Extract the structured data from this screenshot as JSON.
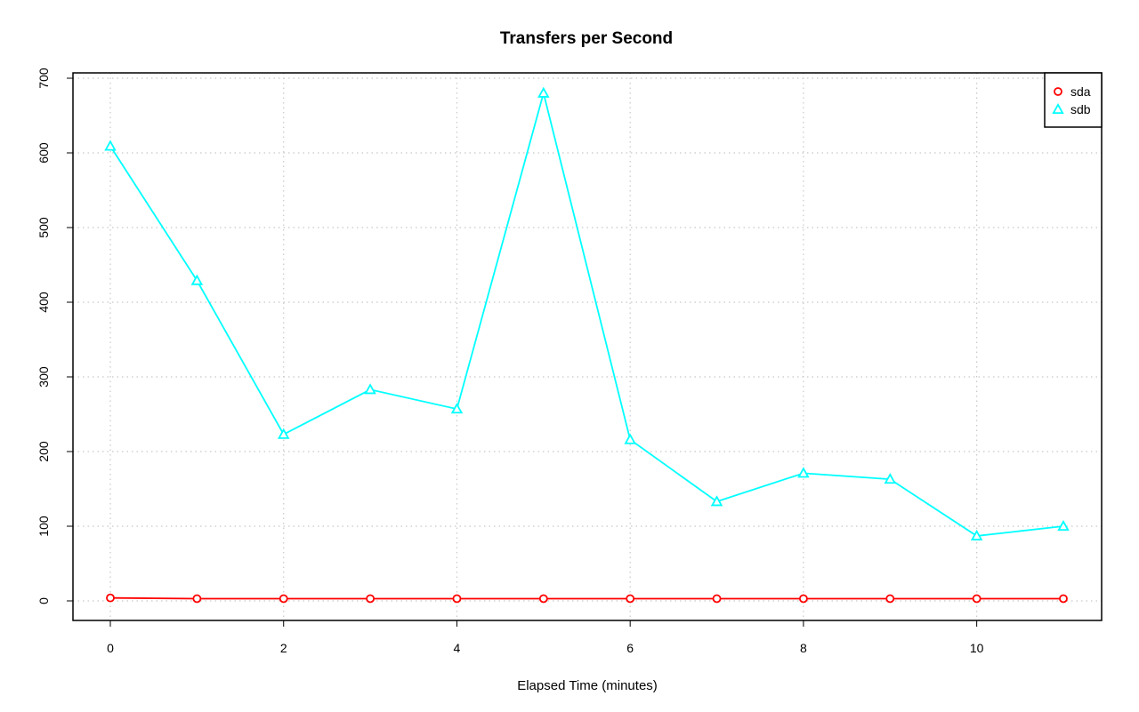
{
  "chart_data": {
    "type": "line",
    "title": "Transfers per Second",
    "xlabel": "Elapsed Time (minutes)",
    "ylabel": "",
    "xlim": [
      0,
      11
    ],
    "ylim": [
      0,
      700
    ],
    "x_ticks": [
      0,
      2,
      4,
      6,
      8,
      10
    ],
    "y_ticks": [
      0,
      100,
      200,
      300,
      400,
      500,
      600,
      700
    ],
    "grid": true,
    "legend_position": "top-right",
    "x": [
      0,
      1,
      2,
      3,
      4,
      5,
      6,
      7,
      8,
      9,
      10,
      11
    ],
    "series": [
      {
        "name": "sda",
        "color": "#ff0000",
        "marker": "circle",
        "values": [
          4,
          3,
          3,
          3,
          3,
          3,
          3,
          3,
          3,
          3,
          3,
          3
        ]
      },
      {
        "name": "sdb",
        "color": "#00ffff",
        "marker": "triangle",
        "values": [
          609,
          429,
          223,
          283,
          257,
          680,
          216,
          133,
          171,
          163,
          87,
          100
        ]
      }
    ]
  }
}
